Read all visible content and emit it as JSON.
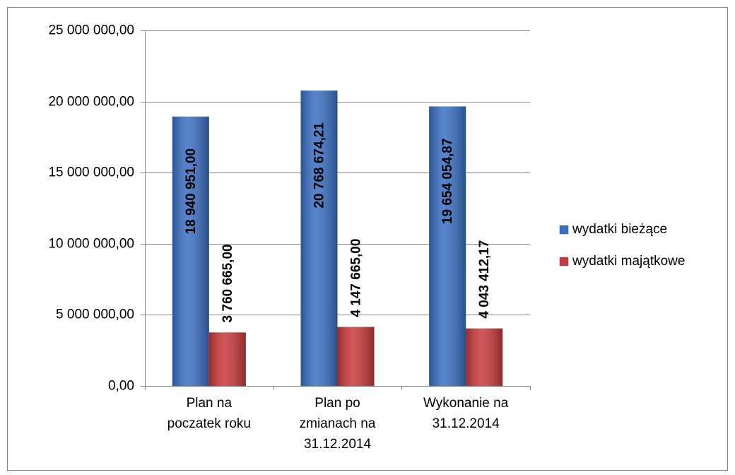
{
  "chart_data": {
    "type": "bar",
    "categories": [
      "Plan na poczatek roku",
      "Plan po zmianach na 31.12.2014",
      "Wykonanie na 31.12.2014"
    ],
    "series": [
      {
        "name": "wydatki bieżące",
        "color": "#3a6fc4",
        "values": [
          18940951.0,
          20768674.21,
          19654054.87
        ],
        "value_labels": [
          "18 940 951,00",
          "20 768 674,21",
          "19 654 054,87"
        ]
      },
      {
        "name": "wydatki majątkowe",
        "color": "#c9393b",
        "values": [
          3760665.0,
          4147665.0,
          4043412.17
        ],
        "value_labels": [
          "3 760 665,00",
          "4 147 665,00",
          "4 043 412,17"
        ]
      }
    ],
    "ylim": [
      0,
      25000000
    ],
    "yticks": [
      {
        "value": 0,
        "label": "0,00"
      },
      {
        "value": 5000000,
        "label": "5 000 000,00"
      },
      {
        "value": 10000000,
        "label": "10 000 000,00"
      },
      {
        "value": 15000000,
        "label": "15 000 000,00"
      },
      {
        "value": 20000000,
        "label": "20 000 000,00"
      },
      {
        "value": 25000000,
        "label": "25 000 000,00"
      }
    ],
    "grid": true,
    "legend": "right"
  }
}
